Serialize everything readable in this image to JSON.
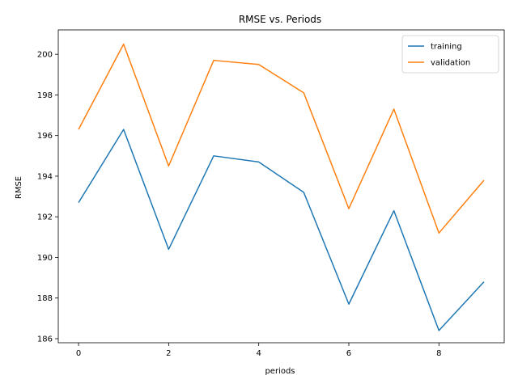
{
  "chart_data": {
    "type": "line",
    "title": "RMSE vs. Periods",
    "xlabel": "periods",
    "ylabel": "RMSE",
    "x": [
      0,
      1,
      2,
      3,
      4,
      5,
      6,
      7,
      8,
      9
    ],
    "xlim": [
      -0.45,
      9.45
    ],
    "ylim": [
      185.8,
      201.2
    ],
    "xticks": [
      0,
      2,
      4,
      6,
      8
    ],
    "yticks": [
      186,
      188,
      190,
      192,
      194,
      196,
      198,
      200
    ],
    "grid": false,
    "legend_position": "top-right",
    "series": [
      {
        "name": "training",
        "color": "#1f77b4",
        "values": [
          192.7,
          196.3,
          190.4,
          195.0,
          194.7,
          193.2,
          187.7,
          192.3,
          186.4,
          188.8
        ]
      },
      {
        "name": "validation",
        "color": "#ff7f0e",
        "values": [
          196.3,
          200.5,
          194.5,
          199.7,
          199.5,
          198.1,
          192.4,
          197.3,
          191.2,
          193.8
        ]
      }
    ]
  }
}
